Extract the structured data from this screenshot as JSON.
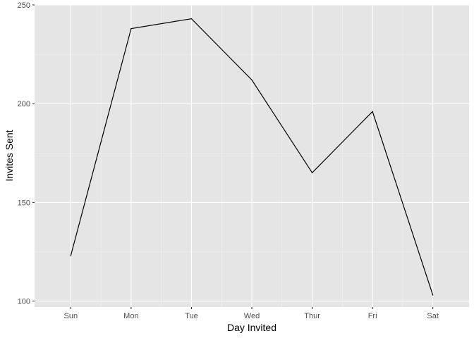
{
  "chart_data": {
    "type": "line",
    "xlabel": "Day Invited",
    "ylabel": "Invites Sent",
    "categories": [
      "Sun",
      "Mon",
      "Tue",
      "Wed",
      "Thur",
      "Fri",
      "Sat"
    ],
    "series": [
      {
        "values": [
          123,
          238,
          243,
          212,
          165,
          196,
          103
        ]
      }
    ],
    "ylim": [
      97,
      250
    ],
    "yticks": [
      100,
      150,
      200,
      250
    ],
    "grid": true,
    "legend": "none",
    "colors": {
      "panel": "#e5e5e5",
      "grid": "#ffffff",
      "line": "#000000",
      "tick_text": "#4d4d4d"
    }
  }
}
